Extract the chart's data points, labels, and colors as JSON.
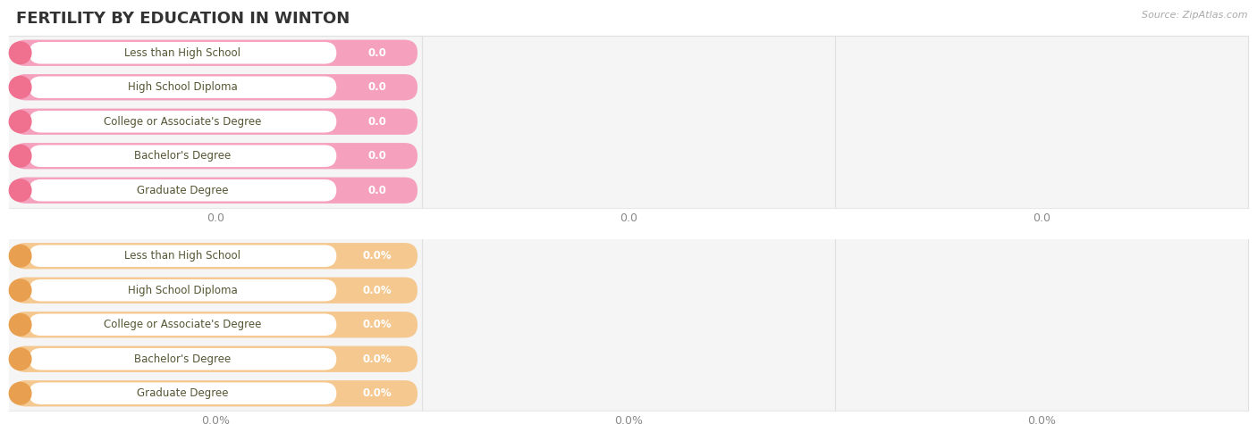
{
  "title": "FERTILITY BY EDUCATION IN WINTON",
  "source": "Source: ZipAtlas.com",
  "categories": [
    "Less than High School",
    "High School Diploma",
    "College or Associate's Degree",
    "Bachelor's Degree",
    "Graduate Degree"
  ],
  "values_top": [
    0.0,
    0.0,
    0.0,
    0.0,
    0.0
  ],
  "values_bottom": [
    0.0,
    0.0,
    0.0,
    0.0,
    0.0
  ],
  "top_bar_color": "#F5A0BC",
  "top_circle_color": "#F07090",
  "top_label_color": "#555533",
  "top_value_color": "#FFFFFF",
  "top_bg_color": "#FAD0DF",
  "top_outer_bg": "#EDEDED",
  "bottom_bar_color": "#F5C890",
  "bottom_circle_color": "#E8A050",
  "bottom_label_color": "#555533",
  "bottom_value_color": "#FFFFFF",
  "bottom_bg_color": "#FAE0C0",
  "bottom_outer_bg": "#EDEDED",
  "bg_color": "#FFFFFF",
  "row_separator_color": "#E8E8E8",
  "grid_color": "#E0E0E0",
  "title_color": "#333333",
  "source_color": "#AAAAAA",
  "axis_label_color": "#888888",
  "xtick_labels_top": [
    "0.0",
    "0.0",
    "0.0"
  ],
  "xtick_labels_bottom": [
    "0.0%",
    "0.0%",
    "0.0%"
  ]
}
